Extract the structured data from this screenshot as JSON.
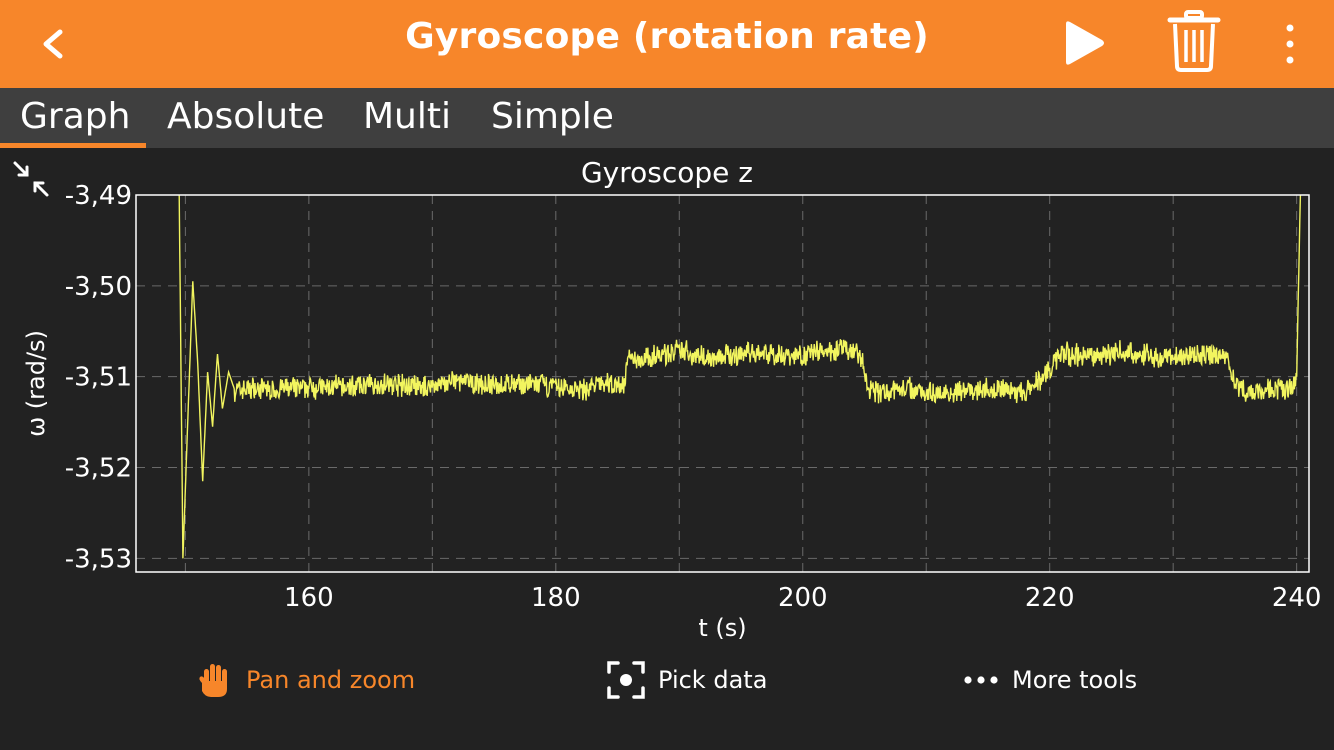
{
  "header": {
    "title": "Gyroscope (rotation rate)",
    "accent_color": "#f7862a",
    "icons": [
      "back-chevron-icon",
      "play-icon",
      "trash-icon",
      "more-vertical-icon"
    ]
  },
  "tabs": [
    {
      "label": "Graph",
      "active": true
    },
    {
      "label": "Absolute",
      "active": false
    },
    {
      "label": "Multi",
      "active": false
    },
    {
      "label": "Simple",
      "active": false
    }
  ],
  "toolbar": {
    "pan_zoom_label": "Pan and zoom",
    "pick_data_label": "Pick data",
    "more_tools_label": "More tools"
  },
  "chart_data": {
    "type": "line",
    "title": "Gyroscope z",
    "xlabel": "t (s)",
    "ylabel": "ω (rad/s)",
    "xlim": [
      146,
      241
    ],
    "ylim": [
      -3.5315,
      -3.49
    ],
    "x_ticks": [
      160,
      180,
      200,
      220,
      240
    ],
    "x_tick_labels": [
      "160",
      "180",
      "200",
      "220",
      "240"
    ],
    "y_ticks": [
      -3.49,
      -3.5,
      -3.51,
      -3.52,
      -3.53
    ],
    "y_tick_labels": [
      "-3,49",
      "-3,50",
      "-3,51",
      "-3,52",
      "-3,53"
    ],
    "grid": true,
    "line_color": "#f2f55f",
    "series": [
      {
        "x": [
          149.5,
          149.8,
          150.2,
          150.6,
          151.0,
          151.4,
          151.8,
          152.2,
          152.6,
          153.0,
          153.5,
          154.0,
          154.5,
          155.5,
          157.0,
          160.0,
          163.0,
          166.0,
          169.0,
          172.0,
          175.0,
          178.0,
          180.0,
          182.0,
          184.0,
          185.5,
          186.0,
          186.5,
          188.0,
          190.0,
          193.0,
          196.0,
          199.0,
          202.0,
          204.0,
          204.8,
          205.2,
          206.0,
          208.0,
          211.0,
          214.0,
          216.0,
          218.0,
          219.5,
          221.0,
          223.0,
          226.0,
          229.0,
          232.0,
          234.5,
          235.0,
          236.0,
          238.0,
          239.5,
          240.0,
          240.3
        ],
        "y": [
          -3.49,
          -3.53,
          -3.5145,
          -3.4995,
          -3.5085,
          -3.5215,
          -3.5095,
          -3.5155,
          -3.5075,
          -3.5135,
          -3.5095,
          -3.5115,
          -3.5115,
          -3.5112,
          -3.5115,
          -3.5112,
          -3.5112,
          -3.5108,
          -3.5112,
          -3.5105,
          -3.511,
          -3.5108,
          -3.5112,
          -3.5115,
          -3.5108,
          -3.511,
          -3.5075,
          -3.508,
          -3.5078,
          -3.5072,
          -3.508,
          -3.5072,
          -3.5078,
          -3.507,
          -3.5072,
          -3.508,
          -3.5112,
          -3.5118,
          -3.5112,
          -3.5118,
          -3.5115,
          -3.5112,
          -3.5118,
          -3.51,
          -3.5075,
          -3.5078,
          -3.5072,
          -3.508,
          -3.5075,
          -3.508,
          -3.5112,
          -3.5118,
          -3.5112,
          -3.5115,
          -3.51,
          -3.49
        ]
      }
    ]
  }
}
